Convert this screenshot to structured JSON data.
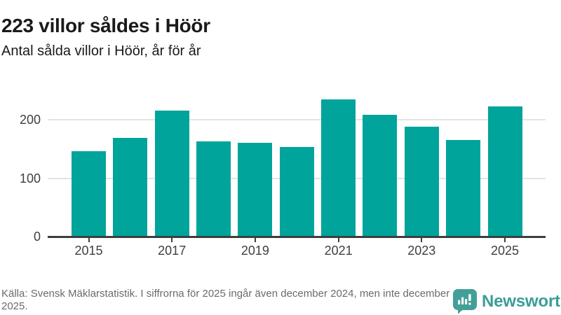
{
  "header": {
    "title": "223 villor såldes i Höör",
    "subtitle": "Antal sålda villor i Höör, år för år"
  },
  "chart_data": {
    "type": "bar",
    "categories": [
      "2015",
      "2016",
      "2017",
      "2018",
      "2019",
      "2020",
      "2021",
      "2022",
      "2023",
      "2024",
      "2025"
    ],
    "values": [
      147,
      169,
      216,
      163,
      161,
      154,
      235,
      209,
      189,
      166,
      223
    ],
    "title": "223 villor såldes i Höör",
    "subtitle": "Antal sålda villor i Höör, år för år",
    "xlabel": "",
    "ylabel": "",
    "ylim": [
      0,
      245
    ],
    "yticks": [
      0,
      100,
      200
    ],
    "xtick_labels": [
      "2015",
      "2017",
      "2019",
      "2021",
      "2023",
      "2025"
    ],
    "grid": true,
    "legend": false,
    "bar_color": "#00a49b"
  },
  "footer": {
    "source_text": "Källa: Svensk Mäklarstatistik. I siffrorna för 2025 ingår även december 2024, men inte december 2025.",
    "brand_name": "Newsworthy"
  },
  "colors": {
    "accent": "#00a49b",
    "logo": "#43a098",
    "brand_text": "#3a9e98",
    "title_text": "#1a1a1a",
    "axis_text": "#3f3f3f",
    "footer_text": "#6b6b6b",
    "gridline": "#e4e4e4",
    "axis_line": "#3e3e3e"
  }
}
